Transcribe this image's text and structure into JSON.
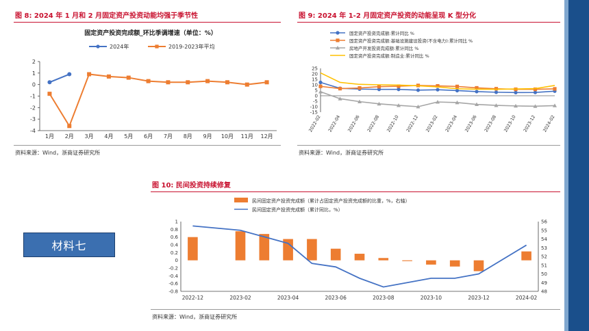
{
  "material_label": "材料七",
  "charts": [
    {
      "fig_title": "图 8:   2024 年 1 月和 2 月固定资产投资动能均强于季节性",
      "chart_title": "固定资产投资完成额_环比季调增速（单位：%）",
      "source": "资料来源：Wind，浙商证券研究所",
      "type": "line",
      "categories": [
        "1月",
        "2月",
        "3月",
        "4月",
        "5月",
        "6月",
        "7月",
        "8月",
        "9月",
        "10月",
        "11月",
        "12月"
      ],
      "series": [
        {
          "name": "2024年",
          "color": "#4472c4",
          "values": [
            0.2,
            0.9,
            null,
            null,
            null,
            null,
            null,
            null,
            null,
            null,
            null,
            null
          ]
        },
        {
          "name": "2019-2023年平均",
          "color": "#ed7d31",
          "values": [
            -0.8,
            -3.6,
            0.9,
            0.7,
            0.6,
            0.3,
            0.2,
            0.2,
            0.3,
            0.2,
            0.0,
            0.2
          ]
        }
      ],
      "yticks": [
        -4,
        -3,
        -2,
        -1,
        0,
        1,
        2
      ],
      "ylim": [
        -4,
        2
      ]
    },
    {
      "fig_title": "图 9:   2024 年 1-2 月固定资产投资的动能呈现 K 型分化",
      "source": "资料来源：Wind，浙商证券研究所",
      "type": "line",
      "categories": [
        "2022-02",
        "2022-04",
        "2022-06",
        "2022-08",
        "2022-10",
        "2022-12",
        "2023-02",
        "2023-04",
        "2023-06",
        "2023-08",
        "2023-10",
        "2023-12",
        "2024-02"
      ],
      "series": [
        {
          "name": "固定资产投资完成额:累计同比 %",
          "color": "#4472c4",
          "marker": "circle",
          "values": [
            12.2,
            6.8,
            6.1,
            5.8,
            5.8,
            5.1,
            5.5,
            4.7,
            3.8,
            3.2,
            2.9,
            3.0,
            4.2
          ]
        },
        {
          "name": "固定资产投资完成额:基础设施建设投资(不含电力):累计同比 %",
          "color": "#ed7d31",
          "marker": "square",
          "values": [
            8.6,
            6.5,
            7.1,
            8.3,
            8.7,
            9.4,
            9.0,
            8.5,
            7.2,
            6.4,
            5.9,
            5.9,
            6.3
          ]
        },
        {
          "name": "房地产开发投资完成额:累计同比 %",
          "color": "#a5a5a5",
          "marker": "triangle",
          "values": [
            3.7,
            -2.7,
            -5.4,
            -7.4,
            -8.8,
            -10.0,
            -5.7,
            -6.2,
            -7.9,
            -8.8,
            -9.3,
            -9.6,
            -9.0
          ]
        },
        {
          "name": "固定资产投资完成额:制造业:累计同比 %",
          "color": "#ffc000",
          "marker": "none",
          "values": [
            20.9,
            12.2,
            10.4,
            10.0,
            9.7,
            9.1,
            8.1,
            6.4,
            6.0,
            5.9,
            6.2,
            6.5,
            9.4
          ]
        }
      ],
      "yticks": [
        -15,
        -10,
        -5,
        0,
        5,
        10,
        15,
        20,
        25
      ],
      "ylim": [
        -15,
        25
      ]
    },
    {
      "fig_title": "图 10:   民间投资持续修复",
      "source": "资料来源：Wind，浙商证券研究所",
      "type": "bar+line",
      "categories": [
        "2022-12",
        "2023-02",
        "2023-04",
        "2023-06",
        "2023-08",
        "2023-10",
        "2023-12",
        "2024-02"
      ],
      "bar_series": {
        "name": "民间固定资产投资完成额（累计占固定资产投资完成额的比重，%，右轴）",
        "color": "#ed7d31",
        "points": [
          {
            "x": "2022-12",
            "value": 0.6
          },
          {
            "x": "2023-02",
            "value": 0.75
          },
          {
            "x": "2023-03",
            "value": 0.68
          },
          {
            "x": "2023-04",
            "value": 0.55
          },
          {
            "x": "2023-05",
            "value": 0.55
          },
          {
            "x": "2023-06",
            "value": 0.3
          },
          {
            "x": "2023-07",
            "value": 0.17
          },
          {
            "x": "2023-08",
            "value": 0.06
          },
          {
            "x": "2023-09",
            "value": -0.02
          },
          {
            "x": "2023-10",
            "value": -0.11
          },
          {
            "x": "2023-11",
            "value": -0.16
          },
          {
            "x": "2023-12",
            "value": -0.28
          },
          {
            "x": "2024-02",
            "value": 0.23
          }
        ]
      },
      "line_series": {
        "name": "民间固定资产投资完成额（累计同比，%）",
        "color": "#4472c4",
        "points": [
          {
            "x": "2022-12",
            "value": 55.5
          },
          {
            "x": "2023-02",
            "value": 55.0
          },
          {
            "x": "2023-04",
            "value": 53.5
          },
          {
            "x": "2023-05",
            "value": 51.2
          },
          {
            "x": "2023-06",
            "value": 50.8
          },
          {
            "x": "2023-07",
            "value": 49.5
          },
          {
            "x": "2023-08",
            "value": 48.5
          },
          {
            "x": "2023-09",
            "value": 49.0
          },
          {
            "x": "2023-10",
            "value": 49.5
          },
          {
            "x": "2023-11",
            "value": 49.5
          },
          {
            "x": "2023-12",
            "value": 50.0
          },
          {
            "x": "2024-02",
            "value": 53.3
          }
        ]
      },
      "yleft_ticks": [
        -0.8,
        -0.6,
        -0.4,
        -0.2,
        0,
        0.2,
        0.4,
        0.6,
        0.8,
        1
      ],
      "yleft_lim": [
        -0.8,
        1
      ],
      "yright_ticks": [
        48,
        49,
        50,
        51,
        52,
        53,
        54,
        55,
        56
      ],
      "yright_lim": [
        48,
        56
      ]
    }
  ]
}
